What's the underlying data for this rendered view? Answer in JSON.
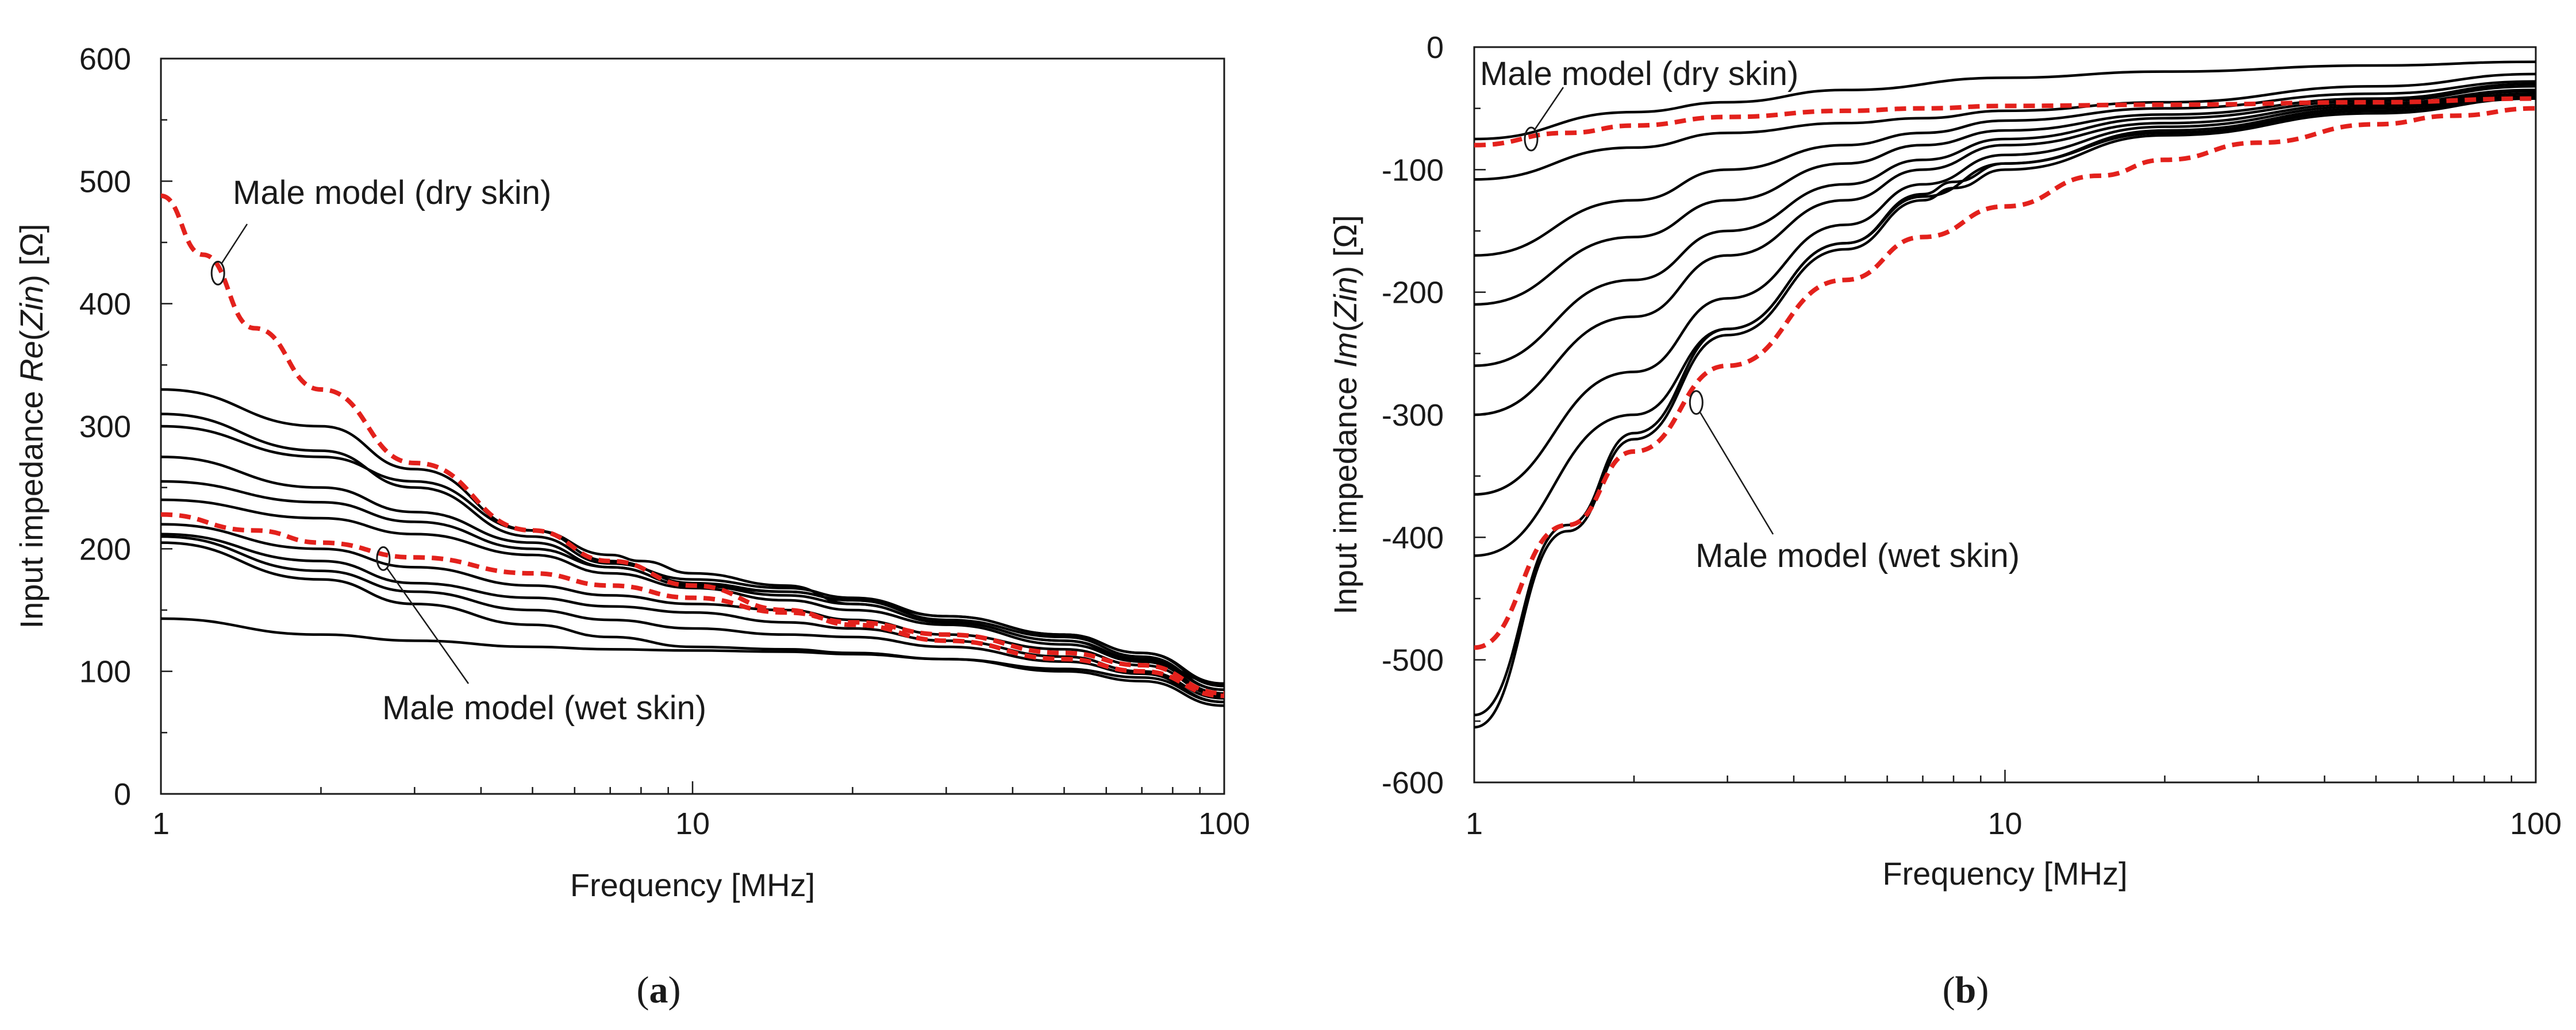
{
  "chart_data": [
    {
      "type": "line",
      "panel_label": "(a)",
      "xlabel": "Frequency [MHz]",
      "ylabel": "Input impedance Re(Zin) [Ω]",
      "ylabel_parts": {
        "prefix": "Input impedance ",
        "emph": "Re",
        "open": "(",
        "emph2": "Zin",
        "suffix": ") [Ω]"
      },
      "x_scale": "log",
      "xlim": [
        1,
        100
      ],
      "ylim": [
        0,
        600
      ],
      "x_ticks": [
        1,
        10,
        100
      ],
      "x_tick_labels": [
        "1",
        "10",
        "100"
      ],
      "y_ticks": [
        0,
        100,
        200,
        300,
        400,
        500,
        600
      ],
      "y_tick_labels": [
        "0",
        "100",
        "200",
        "300",
        "400",
        "500",
        "600"
      ],
      "grid": false,
      "annotations": [
        {
          "text": "Male model (dry skin)",
          "target": [
            1.28,
            425
          ]
        },
        {
          "text": "Male model (wet skin)",
          "target": [
            2.62,
            192
          ]
        }
      ],
      "series": [
        {
          "color": "#e3211c",
          "style": "dashed",
          "x": [
            1,
            1.2,
            1.5,
            2,
            3,
            5,
            7,
            10,
            15,
            20,
            30,
            50,
            70,
            100
          ],
          "y": [
            488,
            440,
            380,
            330,
            270,
            215,
            190,
            170,
            150,
            138,
            125,
            110,
            100,
            80
          ]
        },
        {
          "color": "#e3211c",
          "style": "dashed",
          "x": [
            1,
            1.5,
            2,
            3,
            5,
            7,
            10,
            15,
            20,
            30,
            50,
            70,
            100
          ],
          "y": [
            228,
            215,
            205,
            193,
            180,
            170,
            160,
            148,
            140,
            130,
            115,
            105,
            82
          ]
        },
        {
          "color": "#000000",
          "x": [
            1,
            2,
            3,
            5,
            7,
            8,
            10,
            15,
            20,
            30,
            50,
            70,
            100
          ],
          "y": [
            330,
            300,
            265,
            215,
            195,
            190,
            180,
            170,
            155,
            140,
            125,
            108,
            90
          ]
        },
        {
          "color": "#000000",
          "x": [
            1,
            2,
            3,
            5,
            7,
            10,
            15,
            20,
            30,
            50,
            70,
            100
          ],
          "y": [
            310,
            280,
            250,
            210,
            188,
            175,
            168,
            160,
            145,
            130,
            115,
            88
          ]
        },
        {
          "color": "#000000",
          "x": [
            1,
            2,
            3,
            5,
            7,
            10,
            15,
            20,
            30,
            50,
            70,
            100
          ],
          "y": [
            300,
            275,
            255,
            215,
            190,
            172,
            165,
            158,
            142,
            128,
            112,
            85
          ]
        },
        {
          "color": "#000000",
          "x": [
            1,
            2,
            3,
            5,
            7,
            10,
            15,
            20,
            30,
            50,
            70,
            100
          ],
          "y": [
            275,
            250,
            230,
            205,
            185,
            170,
            165,
            158,
            145,
            130,
            115,
            90
          ]
        },
        {
          "color": "#000000",
          "x": [
            1,
            2,
            3,
            5,
            7,
            10,
            15,
            20,
            30,
            50,
            70,
            100
          ],
          "y": [
            255,
            238,
            222,
            200,
            185,
            170,
            162,
            155,
            140,
            125,
            110,
            85
          ]
        },
        {
          "color": "#000000",
          "x": [
            1,
            2,
            3,
            5,
            7,
            10,
            15,
            20,
            30,
            50,
            70,
            100
          ],
          "y": [
            240,
            225,
            212,
            195,
            180,
            168,
            158,
            150,
            138,
            122,
            108,
            82
          ]
        },
        {
          "color": "#000000",
          "x": [
            1,
            2,
            3,
            5,
            7,
            10,
            15,
            20,
            30,
            50,
            70,
            100
          ],
          "y": [
            220,
            200,
            185,
            170,
            162,
            155,
            150,
            142,
            130,
            118,
            105,
            80
          ]
        },
        {
          "color": "#000000",
          "x": [
            1,
            2,
            3,
            5,
            7,
            10,
            15,
            20,
            30,
            50,
            70,
            100
          ],
          "y": [
            212,
            190,
            172,
            160,
            153,
            148,
            140,
            135,
            125,
            112,
            100,
            78
          ]
        },
        {
          "color": "#000000",
          "x": [
            1,
            2,
            3,
            5,
            7,
            10,
            15,
            20,
            30,
            50,
            70,
            100
          ],
          "y": [
            210,
            182,
            165,
            150,
            142,
            135,
            130,
            128,
            120,
            108,
            98,
            75
          ]
        },
        {
          "color": "#000000",
          "x": [
            1,
            2,
            3,
            5,
            7,
            10,
            15,
            20,
            30,
            50,
            70,
            100
          ],
          "y": [
            205,
            175,
            155,
            138,
            128,
            120,
            118,
            115,
            110,
            100,
            92,
            72
          ]
        },
        {
          "color": "#000000",
          "x": [
            1,
            2,
            3,
            5,
            7,
            10,
            15,
            20,
            30,
            50,
            70,
            100
          ],
          "y": [
            143,
            130,
            125,
            120,
            118,
            117,
            116,
            114,
            110,
            102,
            95,
            75
          ]
        }
      ]
    },
    {
      "type": "line",
      "panel_label": "(b)",
      "xlabel": "Frequency [MHz]",
      "ylabel": "Input impedance Im(Zin) [Ω]",
      "ylabel_parts": {
        "prefix": "Input impedance ",
        "emph": "Im",
        "open": "(",
        "emph2": "Zin",
        "suffix": ") [Ω]"
      },
      "x_scale": "log",
      "xlim": [
        1,
        100
      ],
      "ylim": [
        -600,
        0
      ],
      "x_ticks": [
        1,
        10,
        100
      ],
      "x_tick_labels": [
        "1",
        "10",
        "100"
      ],
      "y_ticks": [
        -600,
        -500,
        -400,
        -300,
        -200,
        -100,
        0
      ],
      "y_tick_labels": [
        "-600",
        "-500",
        "-400",
        "-300",
        "-200",
        "-100",
        "0"
      ],
      "grid": false,
      "annotations": [
        {
          "text": "Male model (dry skin)",
          "target": [
            1.28,
            -75
          ]
        },
        {
          "text": "Male model (wet skin)",
          "target": [
            2.62,
            -290
          ]
        }
      ],
      "series": [
        {
          "color": "#e3211c",
          "style": "dashed",
          "x": [
            1,
            1.5,
            2,
            3,
            5,
            7,
            10,
            20,
            50,
            100
          ],
          "y": [
            -80,
            -70,
            -64,
            -57,
            -52,
            -50,
            -48,
            -47,
            -45,
            -42
          ]
        },
        {
          "color": "#e3211c",
          "style": "dashed",
          "x": [
            1,
            1.5,
            2,
            3,
            5,
            7,
            10,
            15,
            20,
            30,
            50,
            70,
            100
          ],
          "y": [
            -490,
            -390,
            -330,
            -260,
            -190,
            -155,
            -130,
            -105,
            -92,
            -78,
            -63,
            -56,
            -50
          ]
        },
        {
          "color": "#000000",
          "x": [
            1,
            2,
            3,
            5,
            10,
            20,
            50,
            100
          ],
          "y": [
            -75,
            -53,
            -45,
            -35,
            -25,
            -20,
            -15,
            -12
          ]
        },
        {
          "color": "#000000",
          "x": [
            1,
            2,
            3,
            5,
            7,
            10,
            20,
            50,
            100
          ],
          "y": [
            -108,
            -82,
            -70,
            -62,
            -58,
            -52,
            -45,
            -32,
            -22
          ]
        },
        {
          "color": "#000000",
          "x": [
            1,
            2,
            3,
            5,
            7,
            10,
            20,
            50,
            100
          ],
          "y": [
            -170,
            -125,
            -100,
            -80,
            -70,
            -60,
            -50,
            -38,
            -28
          ]
        },
        {
          "color": "#000000",
          "x": [
            1,
            2,
            3,
            5,
            7,
            10,
            20,
            50,
            100
          ],
          "y": [
            -210,
            -155,
            -125,
            -95,
            -80,
            -68,
            -55,
            -42,
            -30
          ]
        },
        {
          "color": "#000000",
          "x": [
            1,
            2,
            3,
            5,
            7,
            10,
            20,
            50,
            100
          ],
          "y": [
            -260,
            -190,
            -150,
            -112,
            -92,
            -75,
            -58,
            -44,
            -32
          ]
        },
        {
          "color": "#000000",
          "x": [
            1,
            2,
            3,
            5,
            7,
            10,
            20,
            50,
            100
          ],
          "y": [
            -300,
            -220,
            -170,
            -125,
            -100,
            -80,
            -62,
            -46,
            -35
          ]
        },
        {
          "color": "#000000",
          "x": [
            1,
            2,
            3,
            5,
            7,
            10,
            20,
            50,
            100
          ],
          "y": [
            -365,
            -265,
            -205,
            -145,
            -112,
            -88,
            -65,
            -48,
            -36
          ]
        },
        {
          "color": "#000000",
          "x": [
            1,
            2,
            3,
            5,
            7,
            10,
            20,
            50,
            100
          ],
          "y": [
            -415,
            -300,
            -230,
            -160,
            -122,
            -95,
            -68,
            -50,
            -38
          ]
        },
        {
          "color": "#000000",
          "x": [
            1,
            1.5,
            2,
            3,
            5,
            7,
            8,
            10,
            20,
            50,
            100
          ],
          "y": [
            -545,
            -390,
            -315,
            -230,
            -160,
            -120,
            -110,
            -95,
            -70,
            -52,
            -40
          ]
        },
        {
          "color": "#000000",
          "x": [
            1,
            1.5,
            2,
            3,
            5,
            7,
            8,
            10,
            20,
            50,
            100
          ],
          "y": [
            -555,
            -395,
            -320,
            -235,
            -165,
            -125,
            -115,
            -100,
            -72,
            -54,
            -42
          ]
        }
      ]
    }
  ]
}
